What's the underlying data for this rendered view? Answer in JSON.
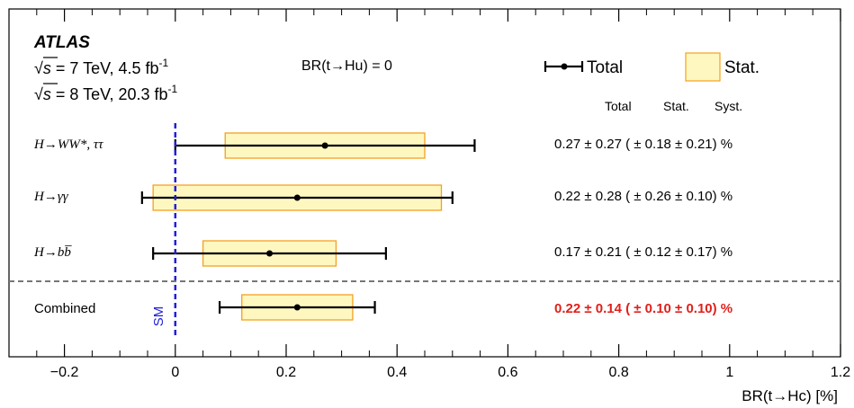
{
  "chart_data": {
    "type": "scatter",
    "experiment": "ATLAS",
    "energy_lines": [
      {
        "prefix": "s",
        "text": " = 7 TeV, 4.5 fb",
        "sup": "-1"
      },
      {
        "prefix": "s",
        "text": " = 8 TeV, 20.3 fb",
        "sup": "-1"
      }
    ],
    "condition": "BR(t→Hu) = 0",
    "xlabel": "BR(t→Hc) [%]",
    "xlim": [
      -0.3,
      1.2
    ],
    "xticks": [
      -0.2,
      0,
      0.2,
      0.4,
      0.6,
      0.8,
      1,
      1.2
    ],
    "xtick_labels": [
      "−0.2",
      "0",
      "0.2",
      "0.4",
      "0.6",
      "0.8",
      "1",
      "1.2"
    ],
    "legend": {
      "total": "Total",
      "stat": "Stat."
    },
    "column_headers": [
      "Total",
      "Stat.",
      "Syst."
    ],
    "sm_label": "SM",
    "sm_value": 0,
    "colors": {
      "stat_fill": "#fef8c0",
      "stat_edge": "#f4a020",
      "sm_line": "#1f1fd6",
      "combined_text": "#e0201b",
      "separator": "#777777"
    },
    "channels": [
      {
        "label": "H→WW*, ττ",
        "value": 0.27,
        "total_err": 0.27,
        "stat_err": 0.18,
        "syst_err": 0.21,
        "summary": "0.27 ± 0.27 ( ± 0.18 ± 0.21) %",
        "highlight": false
      },
      {
        "label": "H→γγ",
        "value": 0.22,
        "total_err": 0.28,
        "stat_err": 0.26,
        "syst_err": 0.1,
        "summary": "0.22 ± 0.28 ( ± 0.26 ± 0.10) %",
        "highlight": false
      },
      {
        "label": "H→bb̅",
        "value": 0.17,
        "total_err": 0.21,
        "stat_err": 0.12,
        "syst_err": 0.17,
        "summary": "0.17 ± 0.21 ( ± 0.12 ± 0.17) %",
        "highlight": false
      },
      {
        "label": "Combined",
        "value": 0.22,
        "total_err": 0.14,
        "stat_err": 0.1,
        "syst_err": 0.1,
        "summary": "0.22 ± 0.14 ( ± 0.10 ± 0.10) %",
        "highlight": true
      }
    ]
  }
}
